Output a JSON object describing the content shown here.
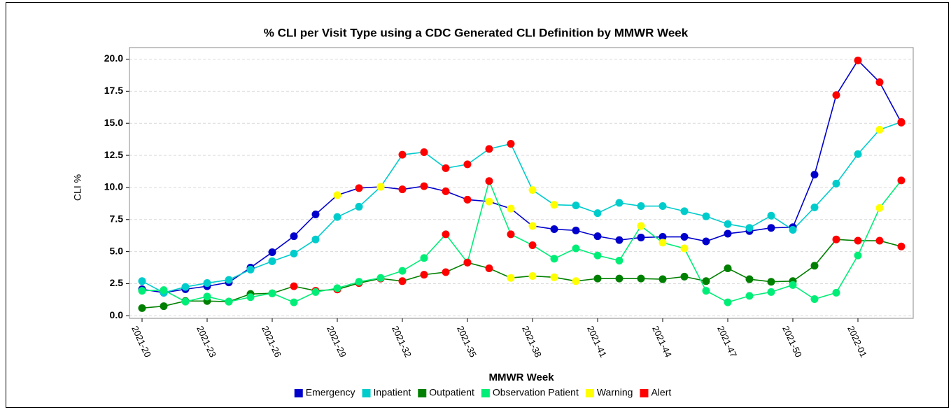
{
  "chart_data": {
    "type": "line",
    "title": "% CLI per Visit Type using a CDC Generated CLI Definition by MMWR Week",
    "x_label": "MMWR Week",
    "y_label": "CLI %",
    "categories": [
      "2021-20",
      null,
      null,
      "2021-23",
      null,
      null,
      "2021-26",
      null,
      null,
      "2021-29",
      null,
      null,
      "2021-32",
      null,
      null,
      "2021-35",
      null,
      null,
      "2021-38",
      null,
      null,
      "2021-41",
      null,
      null,
      "2021-44",
      null,
      null,
      "2021-47",
      null,
      null,
      "2021-50",
      null,
      null,
      "2022-01",
      null,
      null
    ],
    "ylim": [
      -0.2,
      20.9
    ],
    "yticks": [
      {
        "value": 0,
        "label": "0.0"
      },
      2.5,
      {
        "value": 5,
        "label": "5.0"
      },
      7.5,
      {
        "value": 10,
        "label": "10.0"
      },
      12.5,
      {
        "value": 15,
        "label": "15.0"
      },
      17.5,
      {
        "value": 20,
        "label": "20.0"
      }
    ],
    "grid": true,
    "flags": [
      {
        "name": "Warning",
        "color": "#ffff00"
      },
      {
        "name": "Alert",
        "color": "#ff0000"
      }
    ],
    "series": [
      {
        "name": "Emergency",
        "color": "#0000cc",
        "values": [
          2.07,
          1.8,
          2.07,
          2.3,
          2.6,
          3.75,
          4.95,
          6.2,
          7.9,
          9.4,
          9.95,
          10.05,
          9.85,
          10.1,
          9.7,
          9.05,
          8.9,
          8.35,
          7.0,
          6.75,
          6.65,
          6.2,
          5.9,
          6.1,
          6.15,
          6.15,
          5.8,
          6.4,
          6.6,
          6.85,
          6.9,
          11.0,
          17.2,
          19.9,
          18.2,
          15.05
        ],
        "marker_colors": [
          null,
          null,
          null,
          null,
          null,
          null,
          null,
          null,
          null,
          "#ffff00",
          "#ff0000",
          "#ffff00",
          "#ff0000",
          "#ff0000",
          "#ff0000",
          "#ff0000",
          "#ffff00",
          "#ffff00",
          "#ffff00",
          null,
          null,
          null,
          null,
          null,
          null,
          null,
          null,
          null,
          null,
          null,
          null,
          null,
          "#ff0000",
          "#ff0000",
          "#ff0000",
          "#ff0000"
        ]
      },
      {
        "name": "Inpatient",
        "color": "#00cccc",
        "values": [
          2.7,
          1.8,
          2.25,
          2.55,
          2.8,
          3.6,
          4.25,
          4.85,
          5.95,
          7.7,
          8.5,
          10.05,
          12.55,
          12.75,
          11.5,
          11.8,
          13.0,
          13.4,
          9.8,
          8.65,
          8.6,
          8.0,
          8.8,
          8.55,
          8.55,
          8.15,
          7.75,
          7.15,
          6.85,
          7.8,
          6.7,
          8.45,
          10.3,
          12.6,
          14.5,
          15.1
        ],
        "marker_colors": [
          null,
          null,
          null,
          null,
          null,
          null,
          null,
          null,
          null,
          null,
          null,
          "#ffff00",
          "#ff0000",
          "#ff0000",
          "#ff0000",
          "#ff0000",
          "#ff0000",
          "#ff0000",
          "#ffff00",
          "#ffff00",
          null,
          null,
          null,
          null,
          null,
          null,
          null,
          null,
          null,
          null,
          null,
          null,
          null,
          null,
          "#ffff00",
          "#ff0000"
        ]
      },
      {
        "name": "Outpatient",
        "color": "#008000",
        "values": [
          0.6,
          0.75,
          1.15,
          1.15,
          1.1,
          1.7,
          1.75,
          2.3,
          1.95,
          2.05,
          2.55,
          2.9,
          2.7,
          3.2,
          3.4,
          4.15,
          3.7,
          2.95,
          3.1,
          3.0,
          2.7,
          2.9,
          2.9,
          2.9,
          2.85,
          3.05,
          2.7,
          3.7,
          2.85,
          2.65,
          2.7,
          3.9,
          5.95,
          5.85,
          5.85,
          5.4
        ],
        "marker_colors": [
          null,
          null,
          null,
          null,
          null,
          null,
          null,
          "#ff0000",
          "#ff0000",
          "#ff0000",
          "#ff0000",
          "#ff0000",
          "#ff0000",
          "#ff0000",
          "#ff0000",
          "#ff0000",
          "#ff0000",
          "#ffff00",
          "#ffff00",
          "#ffff00",
          "#ffff00",
          null,
          null,
          null,
          null,
          null,
          null,
          null,
          null,
          null,
          null,
          null,
          "#ff0000",
          "#ff0000",
          "#ff0000",
          "#ff0000"
        ]
      },
      {
        "name": "Observation Patient",
        "color": "#00ee77",
        "values": [
          1.95,
          2.0,
          1.1,
          1.5,
          1.1,
          1.45,
          1.75,
          1.05,
          1.85,
          2.15,
          2.65,
          2.95,
          3.5,
          4.5,
          6.35,
          4.15,
          10.5,
          6.35,
          5.5,
          4.45,
          5.25,
          4.7,
          4.3,
          7.0,
          5.7,
          5.25,
          1.95,
          1.05,
          1.55,
          1.85,
          2.4,
          1.3,
          1.8,
          4.7,
          8.4,
          10.55
        ],
        "marker_colors": [
          null,
          null,
          null,
          null,
          null,
          null,
          null,
          null,
          null,
          null,
          null,
          null,
          null,
          null,
          "#ff0000",
          "#ff0000",
          "#ff0000",
          "#ff0000",
          "#ff0000",
          null,
          null,
          null,
          null,
          "#ffff00",
          "#ffff00",
          "#ffff00",
          null,
          null,
          null,
          null,
          null,
          null,
          null,
          null,
          "#ffff00",
          "#ff0000"
        ]
      }
    ]
  }
}
